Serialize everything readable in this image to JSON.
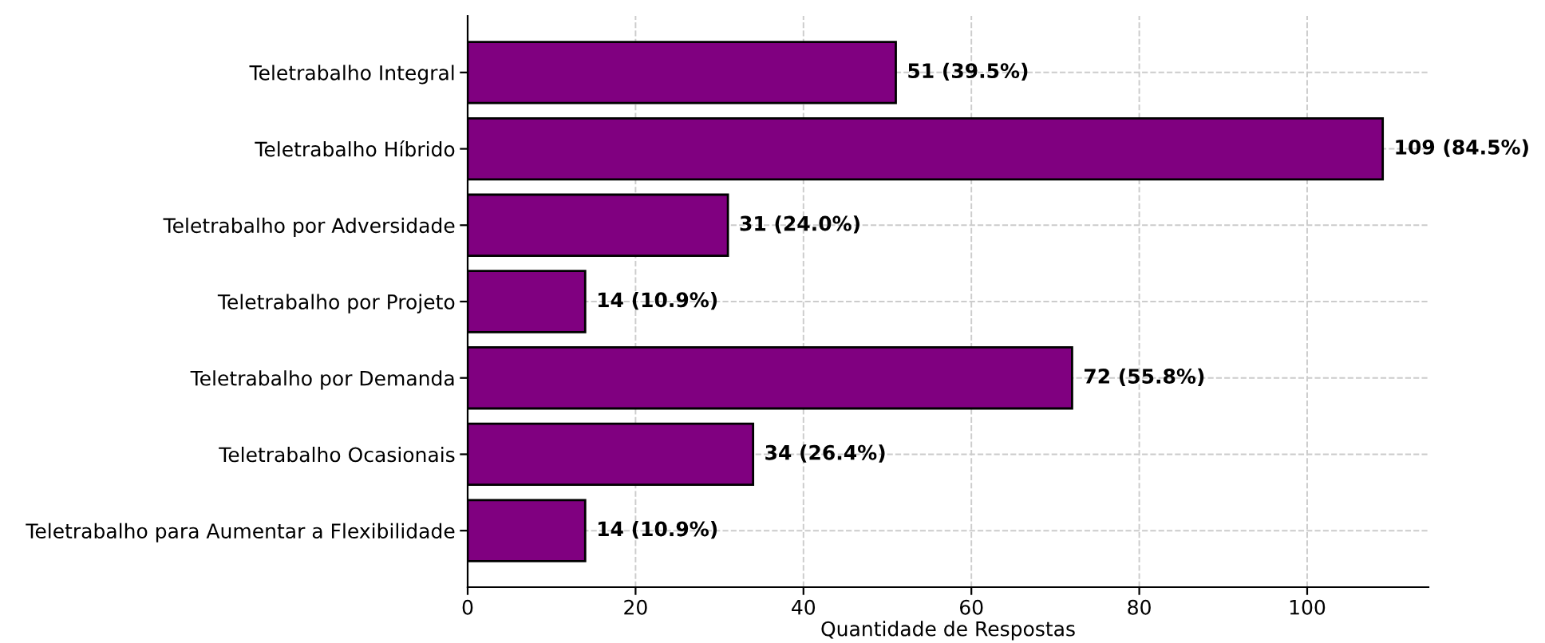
{
  "chart_data": {
    "type": "bar",
    "orientation": "horizontal",
    "xlabel": "Quantidade de Respostas",
    "categories": [
      "Teletrabalho Integral",
      "Teletrabalho Híbrido",
      "Teletrabalho por Adversidade",
      "Teletrabalho por Projeto",
      "Teletrabalho por Demanda",
      "Teletrabalho Ocasionais",
      "Teletrabalho para Aumentar a Flexibilidade"
    ],
    "values": [
      51,
      109,
      31,
      14,
      72,
      34,
      14
    ],
    "value_labels": [
      "51 (39.5%)",
      "109 (84.5%)",
      "31 (24.0%)",
      "14 (10.9%)",
      "72 (55.8%)",
      "34 (26.4%)",
      "14 (10.9%)"
    ],
    "color": "#800080",
    "xlim": [
      0,
      114.45
    ],
    "xticks": [
      0,
      20,
      40,
      60,
      80,
      100
    ],
    "grid": true
  }
}
